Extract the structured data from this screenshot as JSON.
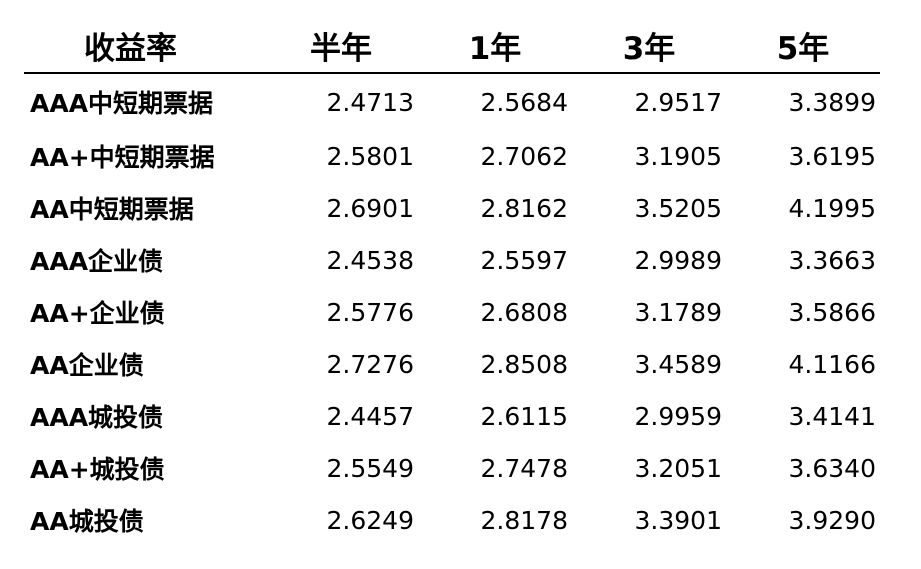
{
  "table": {
    "headers": [
      "收益率",
      "半年",
      "1年",
      "3年",
      "5年"
    ],
    "rows": [
      {
        "label": "AAA中短期票据",
        "values": [
          "2.4713",
          "2.5684",
          "2.9517",
          "3.3899"
        ]
      },
      {
        "label": "AA+中短期票据",
        "values": [
          "2.5801",
          "2.7062",
          "3.1905",
          "3.6195"
        ]
      },
      {
        "label": "AA中短期票据",
        "values": [
          "2.6901",
          "2.8162",
          "3.5205",
          "4.1995"
        ]
      },
      {
        "label": "AAA企业债",
        "values": [
          "2.4538",
          "2.5597",
          "2.9989",
          "3.3663"
        ]
      },
      {
        "label": "AA+企业债",
        "values": [
          "2.5776",
          "2.6808",
          "3.1789",
          "3.5866"
        ]
      },
      {
        "label": "AA企业债",
        "values": [
          "2.7276",
          "2.8508",
          "3.4589",
          "4.1166"
        ]
      },
      {
        "label": "AAA城投债",
        "values": [
          "2.4457",
          "2.6115",
          "2.9959",
          "3.4141"
        ]
      },
      {
        "label": "AA+城投债",
        "values": [
          "2.5549",
          "2.7478",
          "3.2051",
          "3.6340"
        ]
      },
      {
        "label": "AA城投债",
        "values": [
          "2.6249",
          "2.8178",
          "3.3901",
          "3.9290"
        ]
      }
    ]
  }
}
